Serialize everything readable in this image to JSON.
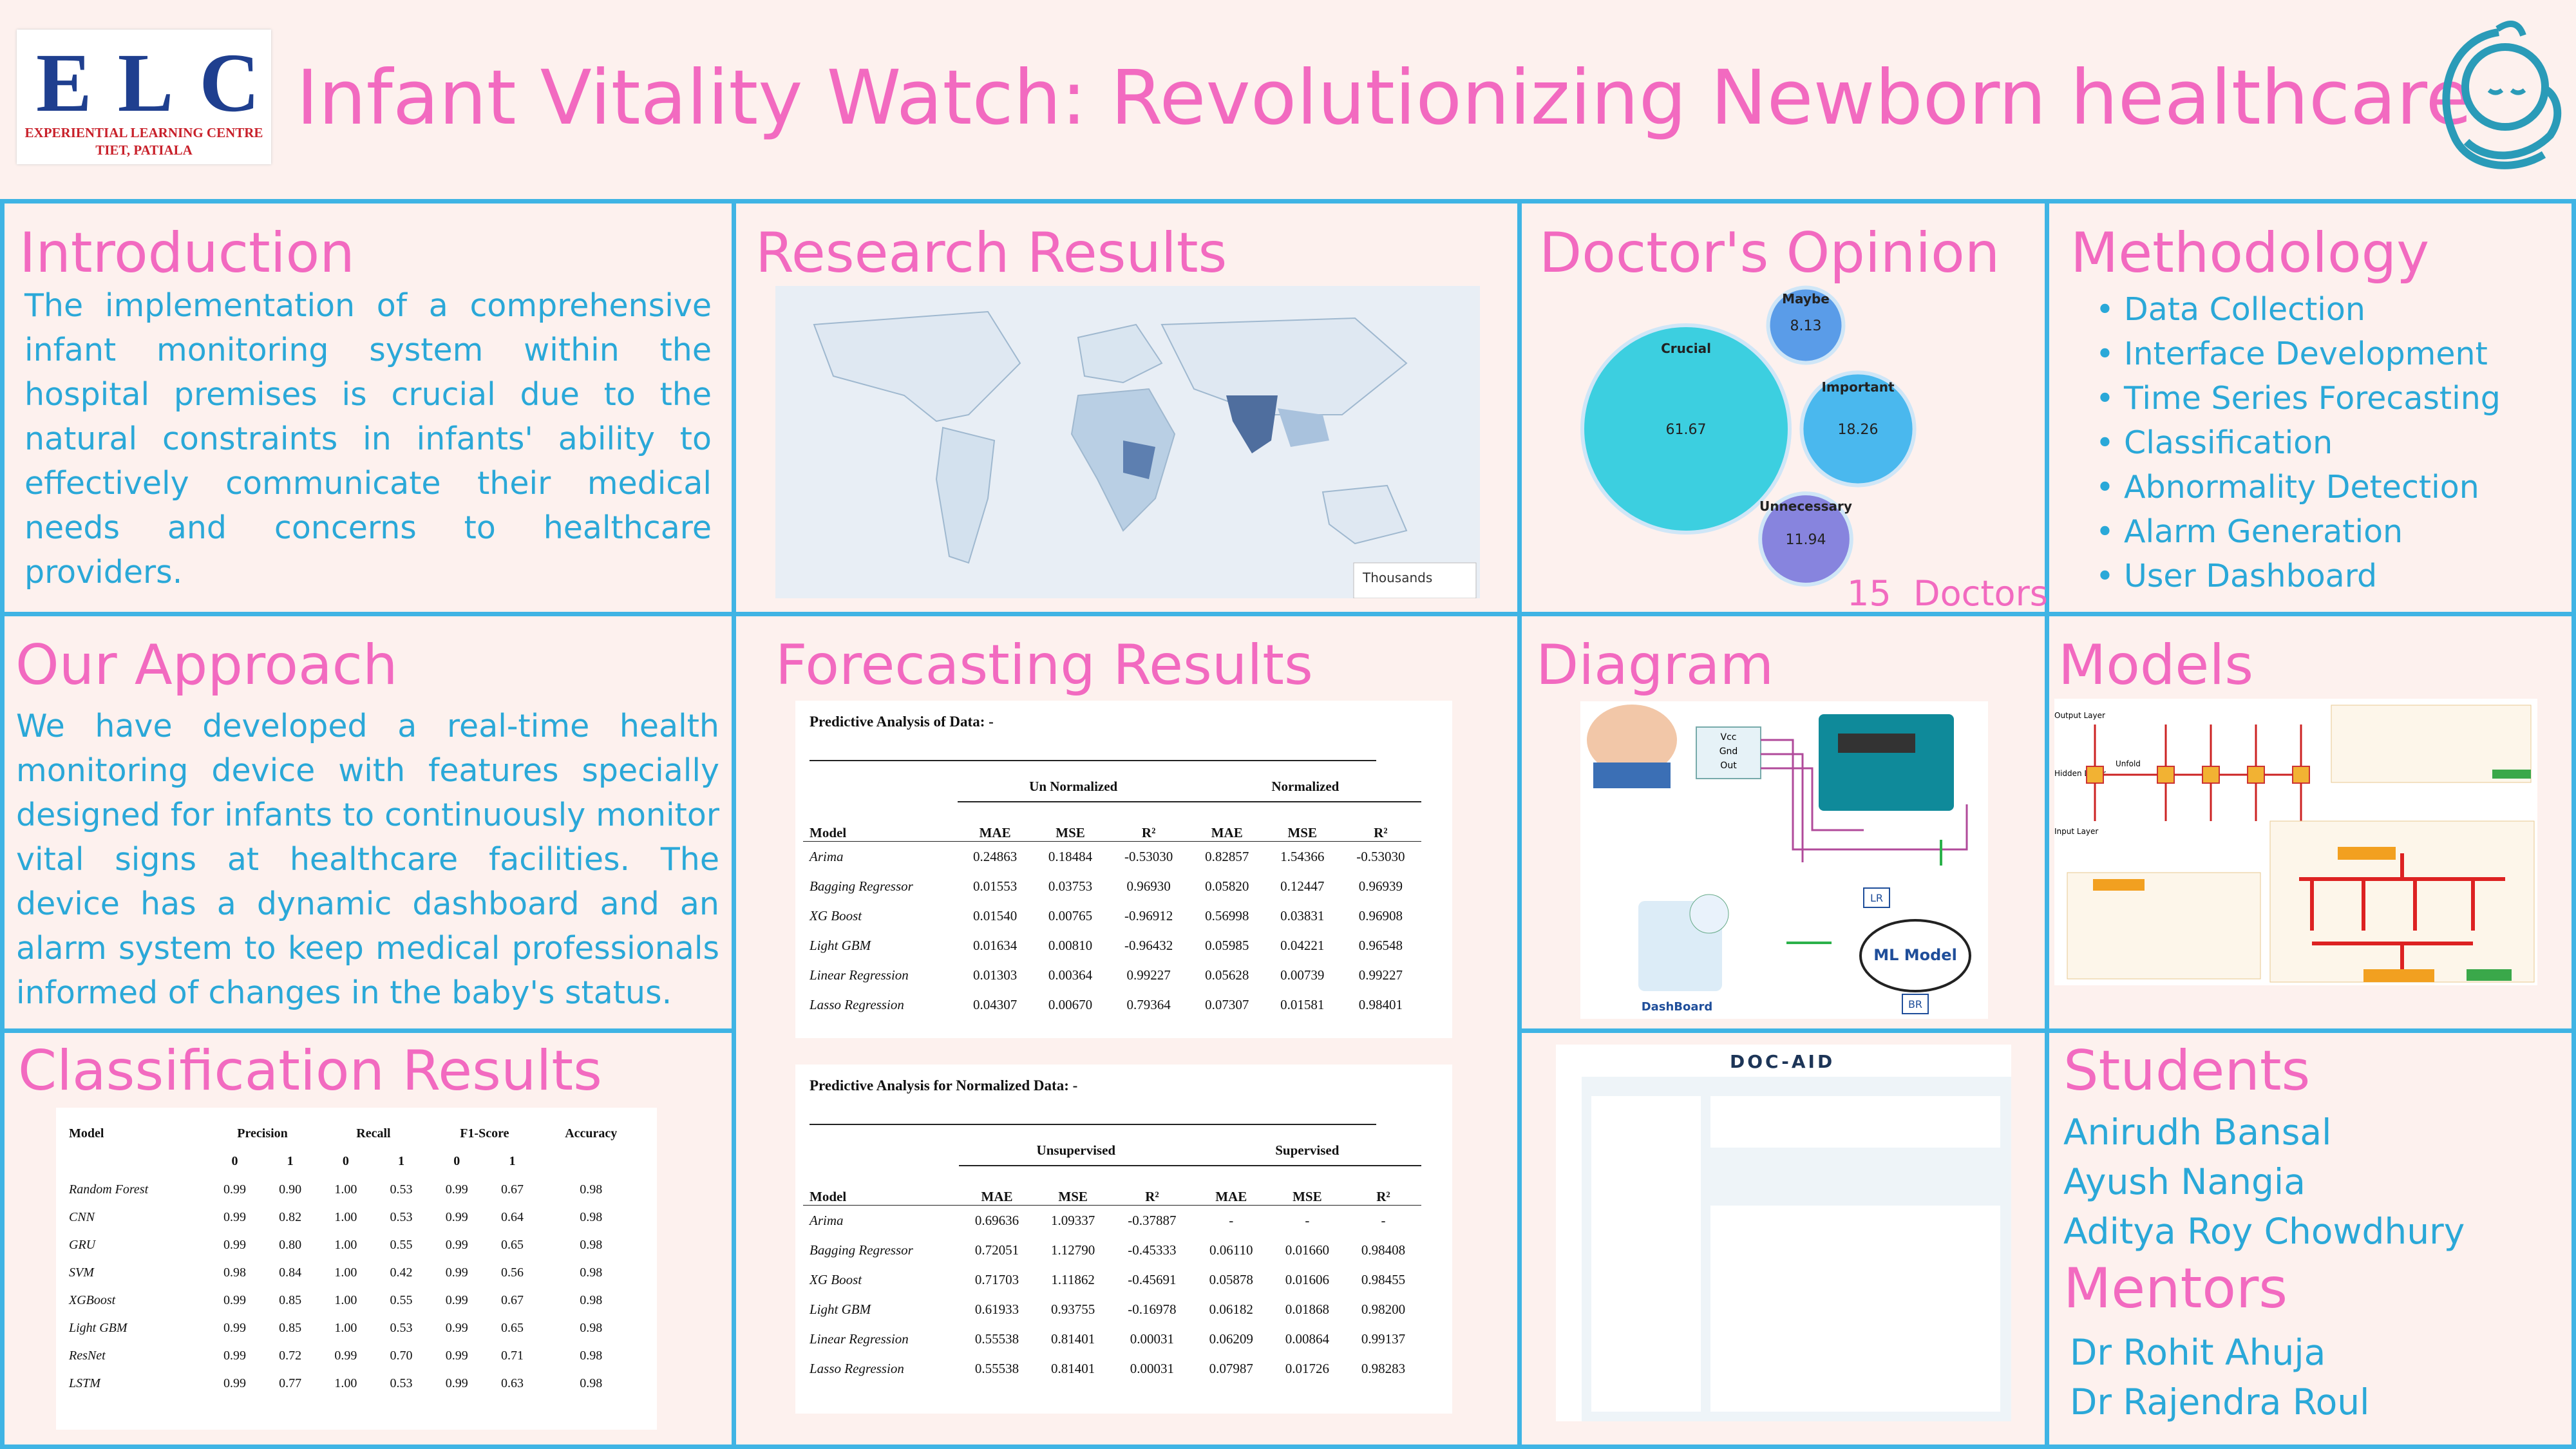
{
  "header": {
    "logo_text": "ELC",
    "logo_subtitle": "EXPERIENTIAL LEARNING CENTRE",
    "logo_location": "TIET, PATIALA",
    "title": "Infant Vitality Watch: Revolutionizing Newborn healthcare"
  },
  "introduction": {
    "title": "Introduction",
    "text": "The implementation of a comprehensive infant monitoring system within the hospital premises is crucial due to the natural constraints in infants' ability to effectively communicate their medical needs and concerns to healthcare providers."
  },
  "research_results": {
    "title": "Research Results",
    "legend_label": "Thousands"
  },
  "doctors_opinion": {
    "title": "Doctor's Opinion",
    "bubbles": [
      {
        "label": "Crucial",
        "value": 61.67,
        "color": "#3ccfe0"
      },
      {
        "label": "Maybe",
        "value": 8.13,
        "color": "#5a9ce8"
      },
      {
        "label": "Important",
        "value": 18.26,
        "color": "#4ab8ee"
      },
      {
        "label": "Unnecessary",
        "value": 11.94,
        "color": "#8784de"
      }
    ],
    "footer": "15  Doctors"
  },
  "methodology": {
    "title": "Methodology",
    "items": [
      "Data Collection",
      "Interface Development",
      "Time Series Forecasting",
      "Classification",
      "Abnormality Detection",
      "Alarm Generation",
      "User Dashboard"
    ]
  },
  "our_approach": {
    "title": "Our Approach",
    "text": "We have developed a real-time health monitoring device with features specially designed for infants to continuously monitor vital signs at healthcare facilities.  The device has a dynamic dashboard and an alarm system to keep medical professionals informed of changes in the baby's status."
  },
  "forecasting_results": {
    "title": "Forecasting Results",
    "tables": [
      {
        "caption": "Predictive Analysis of Data: -",
        "groups": [
          "Un Normalized",
          "Normalized"
        ],
        "header": [
          "Model",
          "MAE",
          "MSE",
          "R²",
          "MAE",
          "MSE",
          "R²"
        ],
        "rows": [
          [
            "Arima",
            "0.24863",
            "0.18484",
            "-0.53030",
            "0.82857",
            "1.54366",
            "-0.53030"
          ],
          [
            "Bagging Regressor",
            "0.01553",
            "0.03753",
            "0.96930",
            "0.05820",
            "0.12447",
            "0.96939"
          ],
          [
            "XG Boost",
            "0.01540",
            "0.00765",
            "-0.96912",
            "0.56998",
            "0.03831",
            "0.96908"
          ],
          [
            "Light GBM",
            "0.01634",
            "0.00810",
            "-0.96432",
            "0.05985",
            "0.04221",
            "0.96548"
          ],
          [
            "Linear Regression",
            "0.01303",
            "0.00364",
            "0.99227",
            "0.05628",
            "0.00739",
            "0.99227"
          ],
          [
            "Lasso Regression",
            "0.04307",
            "0.00670",
            "0.79364",
            "0.07307",
            "0.01581",
            "0.98401"
          ]
        ]
      },
      {
        "caption": "Predictive Analysis for Normalized Data: -",
        "groups": [
          "Unsupervised",
          "Supervised"
        ],
        "header": [
          "Model",
          "MAE",
          "MSE",
          "R²",
          "MAE",
          "MSE",
          "R²"
        ],
        "rows": [
          [
            "Arima",
            "0.69636",
            "1.09337",
            "-0.37887",
            "-",
            "-",
            "-"
          ],
          [
            "Bagging Regressor",
            "0.72051",
            "1.12790",
            "-0.45333",
            "0.06110",
            "0.01660",
            "0.98408"
          ],
          [
            "XG Boost",
            "0.71703",
            "1.11862",
            "-0.45691",
            "0.05878",
            "0.01606",
            "0.98455"
          ],
          [
            "Light GBM",
            "0.61933",
            "0.93755",
            "-0.16978",
            "0.06182",
            "0.01868",
            "0.98200"
          ],
          [
            "Linear Regression",
            "0.55538",
            "0.81401",
            "0.00031",
            "0.06209",
            "0.00864",
            "0.99137"
          ],
          [
            "Lasso Regression",
            "0.55538",
            "0.81401",
            "0.00031",
            "0.07987",
            "0.01726",
            "0.98283"
          ]
        ]
      }
    ]
  },
  "diagram": {
    "title": "Diagram",
    "pins": [
      "Vcc",
      "Gnd",
      "Out"
    ],
    "model_label": "ML Model",
    "model_tags": [
      "LR",
      "BR"
    ],
    "dashboard_label": "DashBoard"
  },
  "models": {
    "title": "Models",
    "layers": [
      "Output Layer",
      "Hidden Layer",
      "Input Layer"
    ],
    "unfold": "Unfold"
  },
  "classification_results": {
    "title": "Classification Results",
    "header": [
      "Model",
      "Precision",
      "Recall",
      "F1-Score",
      "Accuracy"
    ],
    "subheader": [
      "0",
      "1",
      "0",
      "1",
      "0",
      "1"
    ],
    "rows": [
      [
        "Random Forest",
        "0.99",
        "0.90",
        "1.00",
        "0.53",
        "0.99",
        "0.67",
        "0.98"
      ],
      [
        "CNN",
        "0.99",
        "0.82",
        "1.00",
        "0.53",
        "0.99",
        "0.64",
        "0.98"
      ],
      [
        "GRU",
        "0.99",
        "0.80",
        "1.00",
        "0.55",
        "0.99",
        "0.65",
        "0.98"
      ],
      [
        "SVM",
        "0.98",
        "0.84",
        "1.00",
        "0.42",
        "0.99",
        "0.56",
        "0.98"
      ],
      [
        "XGBoost",
        "0.99",
        "0.85",
        "1.00",
        "0.55",
        "0.99",
        "0.67",
        "0.98"
      ],
      [
        "Light GBM",
        "0.99",
        "0.85",
        "1.00",
        "0.53",
        "0.99",
        "0.65",
        "0.98"
      ],
      [
        "ResNet",
        "0.99",
        "0.72",
        "0.99",
        "0.70",
        "0.99",
        "0.71",
        "0.98"
      ],
      [
        "LSTM",
        "0.99",
        "0.77",
        "1.00",
        "0.53",
        "0.99",
        "0.63",
        "0.98"
      ]
    ]
  },
  "dashboard": {
    "app_name": "DOC-AID"
  },
  "students": {
    "title": "Students",
    "names": [
      "Anirudh Bansal",
      "Ayush Nangia",
      "Aditya Roy Chowdhury"
    ]
  },
  "mentors": {
    "title": "Mentors",
    "names": [
      "Dr Rohit Ahuja",
      "Dr Rajendra Roul"
    ]
  }
}
